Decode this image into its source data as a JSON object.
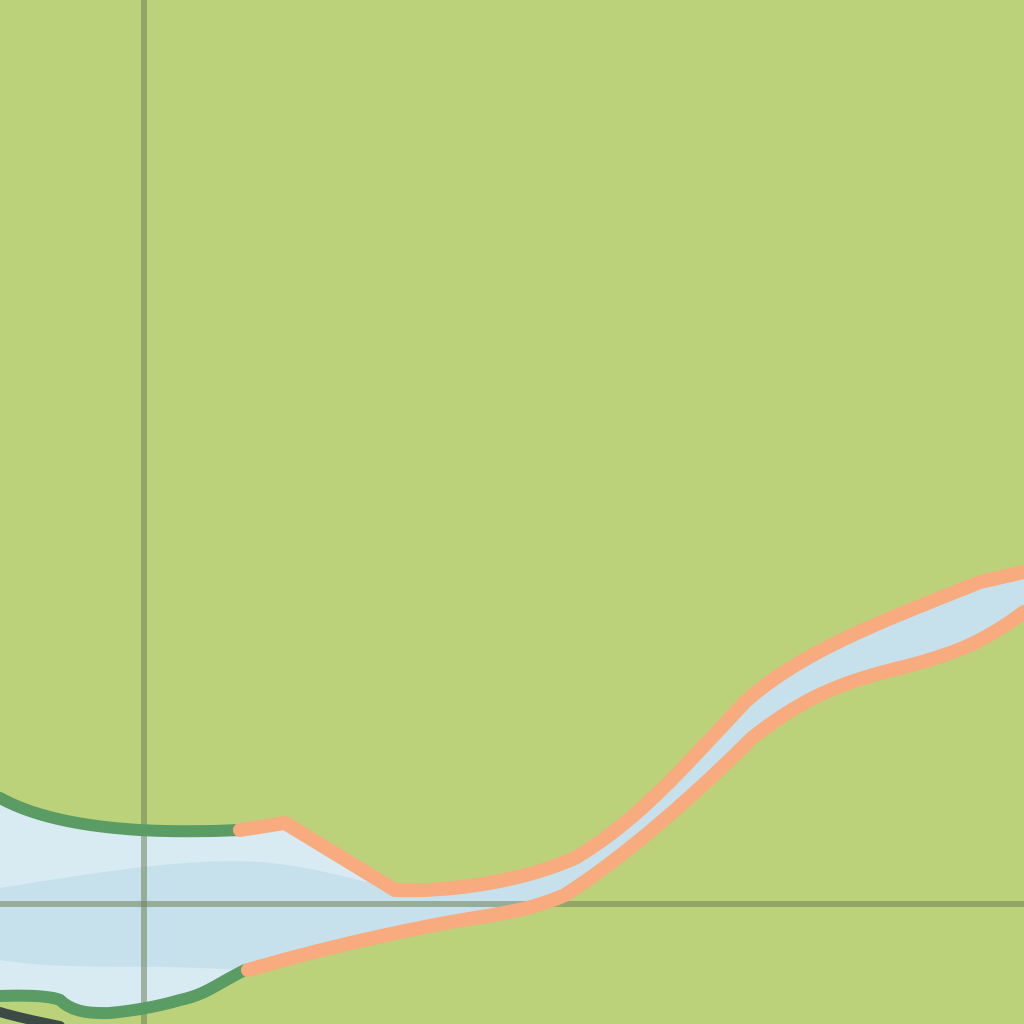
{
  "map": {
    "colors": {
      "land": "#bcd27a",
      "water": "#c6e1ec",
      "water_light": "#d8eaf2",
      "trail_orange": "#f7ab7e",
      "trail_green": "#5a9c63",
      "trail_dark": "#3b4a45",
      "grid_line": "#6f8458"
    },
    "layers": [
      "land",
      "river",
      "grid",
      "trails"
    ]
  }
}
